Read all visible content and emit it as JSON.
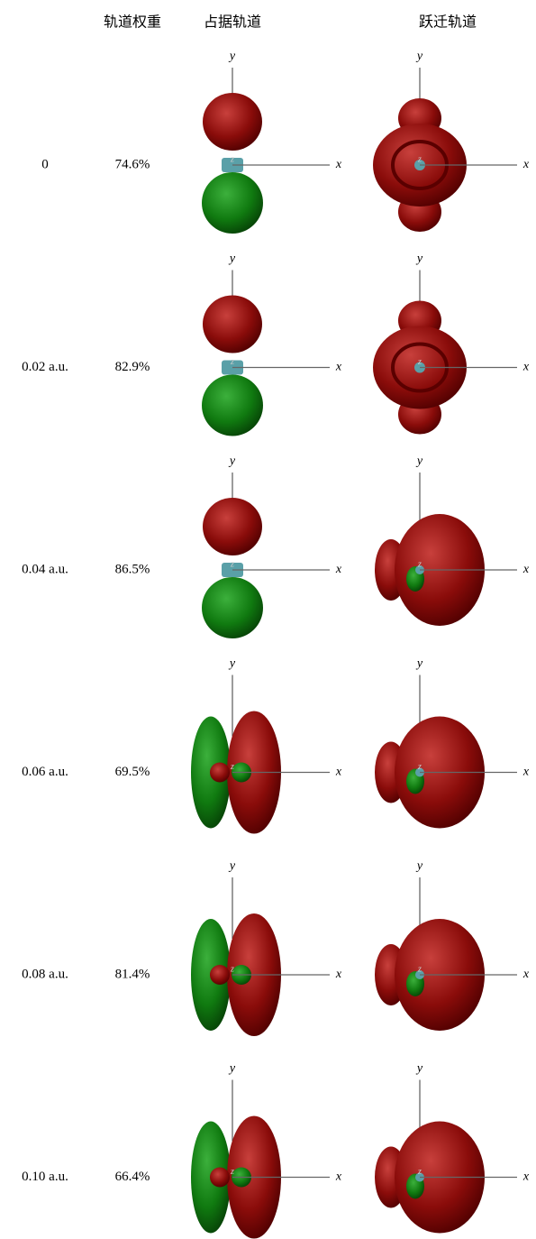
{
  "header": {
    "weight": "轨道权重",
    "occupied": "占据轨道",
    "transition": "跃迁轨道"
  },
  "axis_labels": {
    "x": "x",
    "y": "y",
    "z": "z"
  },
  "rows": [
    {
      "field": "0",
      "weight": "74.6%"
    },
    {
      "field": "0.02 a.u.",
      "weight": "82.9%"
    },
    {
      "field": "0.04 a.u.",
      "weight": "86.5%"
    },
    {
      "field": "0.06 a.u.",
      "weight": "69.5%"
    },
    {
      "field": "0.08 a.u.",
      "weight": "81.4%"
    },
    {
      "field": "0.10 a.u.",
      "weight": "66.4%"
    }
  ]
}
